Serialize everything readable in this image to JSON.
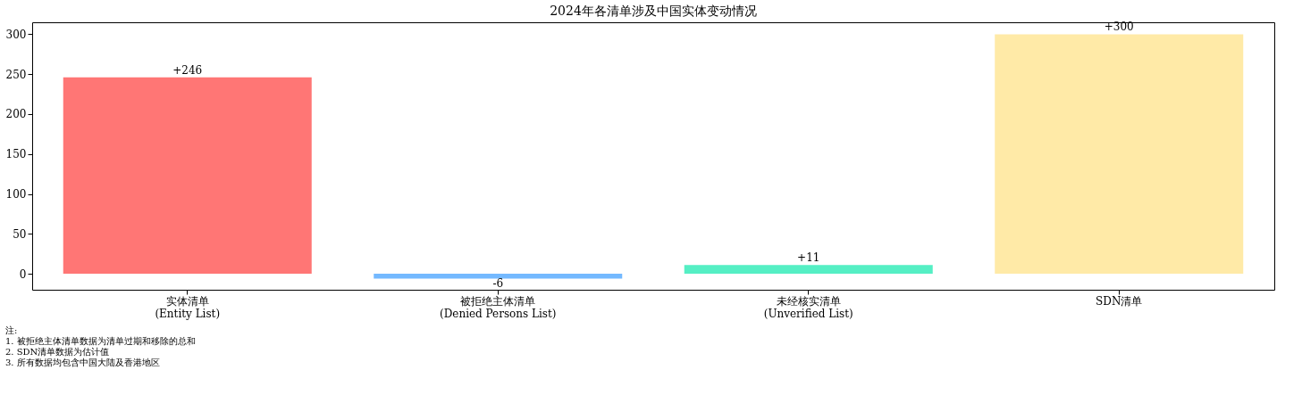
{
  "chart_data": {
    "type": "bar",
    "title": "2024年各清单涉及中国实体变动情况",
    "categories": [
      "实体清单\n(Entity List)",
      "被拒绝主体清单\n(Denied Persons List)",
      "未经核实清单\n(Unverified List)",
      "SDN清单"
    ],
    "values": [
      246,
      -6,
      11,
      300
    ],
    "colors": [
      "#ff7675",
      "#74b9ff",
      "#55efc4",
      "#ffeaa7"
    ],
    "value_labels": [
      "+246",
      "-6",
      "+11",
      "+300"
    ],
    "ylim": [
      -20,
      315
    ],
    "yticks": [
      0,
      50,
      100,
      150,
      200,
      250,
      300
    ],
    "grid": false,
    "annotations": [
      "注:",
      "1. 被拒绝主体清单数据为清单过期和移除的总和",
      "2. SDN清单数据为估计值",
      "3. 所有数据均包含中国大陆及香港地区"
    ]
  }
}
